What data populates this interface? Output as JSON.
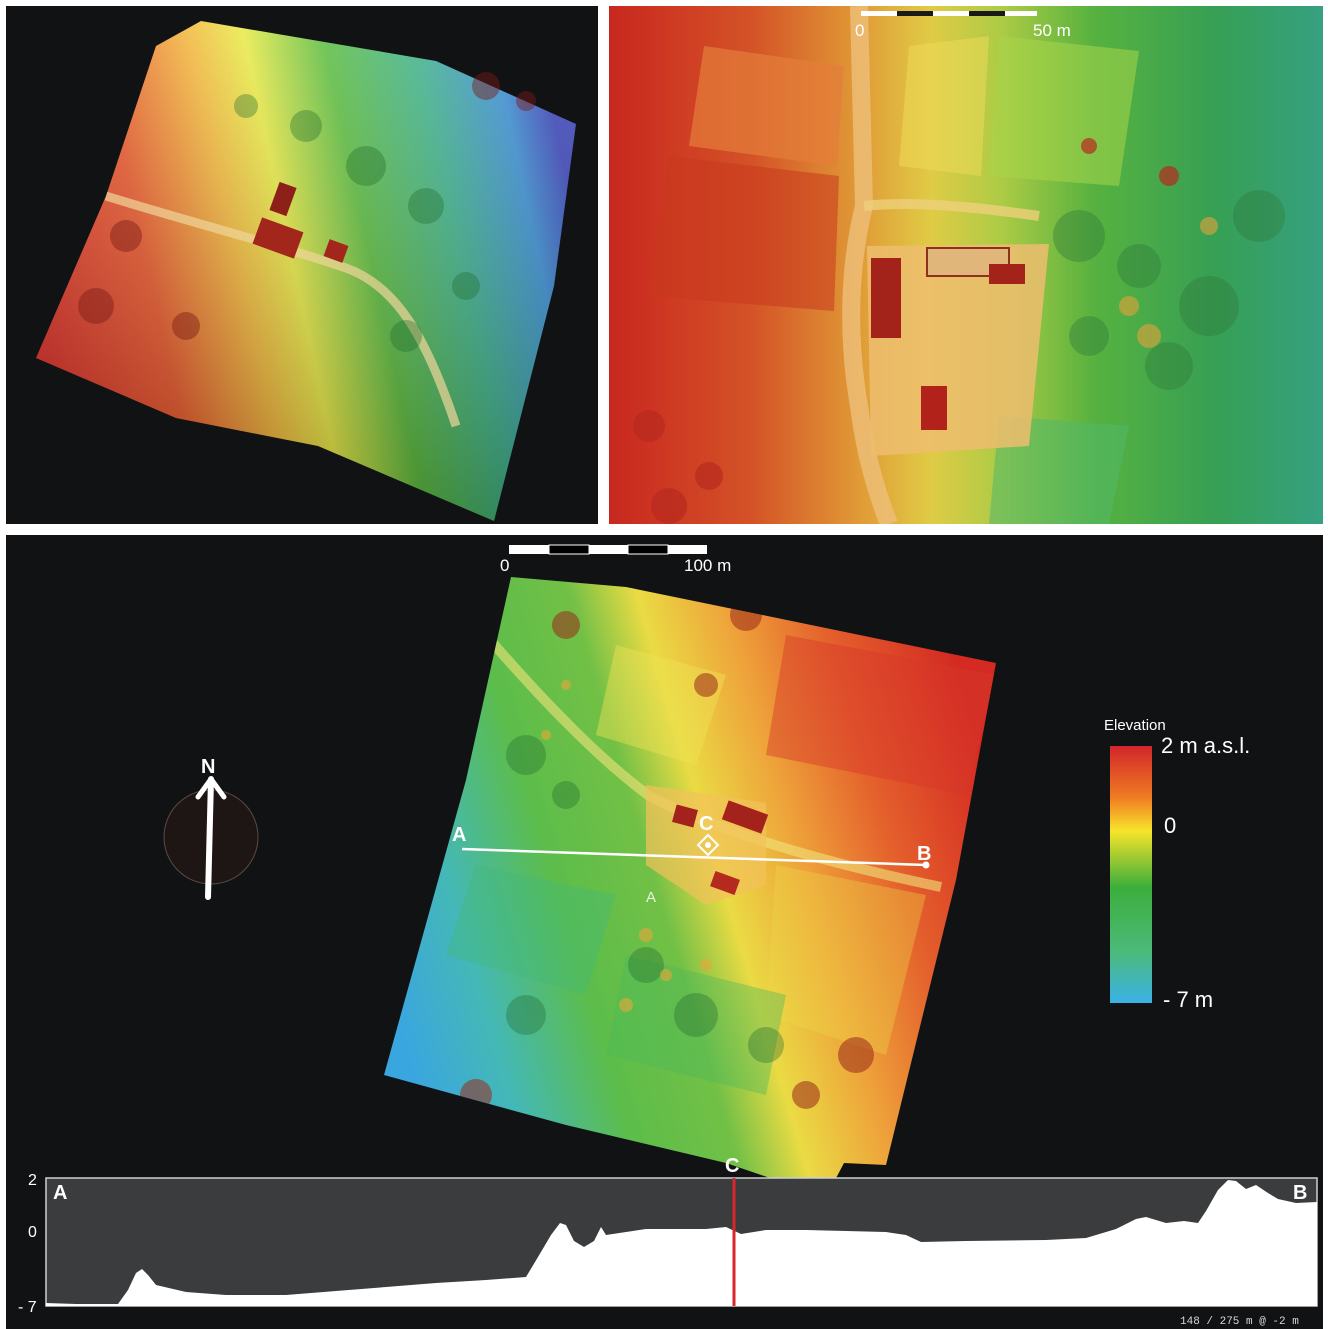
{
  "top_right": {
    "scale_bar": {
      "start_label": "0",
      "end_label": "50 m"
    }
  },
  "main_map": {
    "scale_bar": {
      "start_label": "0",
      "end_label": "100 m"
    },
    "north_arrow_label": "N",
    "profile_line": {
      "start_label": "A",
      "end_label": "B",
      "marker_label": "C"
    },
    "small_label": "A",
    "legend": {
      "title": "Elevation",
      "max_label": "2 m a.s.l.",
      "mid_label": "0",
      "min_label": "- 7 m",
      "colors": [
        "#d2262a",
        "#f07b23",
        "#f7e42a",
        "#3cae3c",
        "#3ab2e6"
      ]
    }
  },
  "profile": {
    "y_tick_labels": [
      "2",
      "0",
      "- 7"
    ],
    "start_label": "A",
    "end_label": "B",
    "cursor_label": "C",
    "status_text": "148 / 275 m @ -2 m",
    "fill_color": "#ffffff",
    "background_color": "#3a3c3e",
    "cursor_color": "#d8262a"
  }
}
